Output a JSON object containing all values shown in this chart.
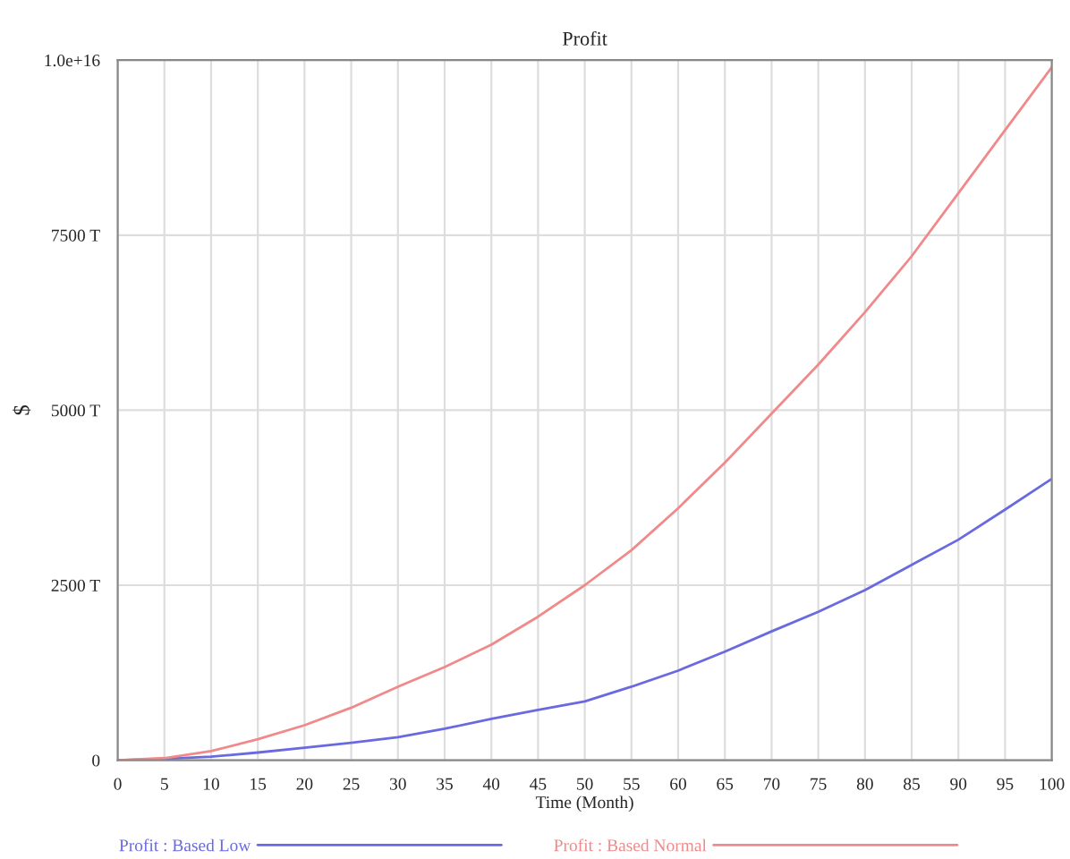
{
  "chart_data": {
    "type": "line",
    "title": "Profit",
    "xlabel": "Time (Month)",
    "ylabel": "$",
    "x": [
      0,
      5,
      10,
      15,
      20,
      25,
      30,
      35,
      40,
      45,
      50,
      55,
      60,
      65,
      70,
      75,
      80,
      85,
      90,
      95,
      100
    ],
    "series": [
      {
        "name": "Profit : Based Low",
        "color": "#6a6ae0",
        "values": [
          0,
          20000000000000.0,
          50000000000000.0,
          110000000000000.0,
          180000000000000.0,
          250000000000000.0,
          330000000000000.0,
          450000000000000.0,
          590000000000000.0,
          720000000000000.0,
          840000000000000.0,
          1050000000000000.0,
          1280000000000000.0,
          1550000000000000.0,
          1840000000000000.0,
          2120000000000000.0,
          2430000000000000.0,
          2790000000000000.0,
          3150000000000000.0,
          3580000000000000.0,
          4020000000000000.0
        ]
      },
      {
        "name": "Profit : Based Normal",
        "color": "#f08a8a",
        "values": [
          0,
          30000000000000.0,
          130000000000000.0,
          300000000000000.0,
          500000000000000.0,
          750000000000000.0,
          1050000000000000.0,
          1330000000000000.0,
          1650000000000000.0,
          2050000000000000.0,
          2500000000000000.0,
          3000000000000000.0,
          3600000000000000.0,
          4250000000000000.0,
          4950000000000000.0,
          5650000000000000.0,
          6400000000000000.0,
          7200000000000000.0,
          8100000000000000.0,
          9000000000000000.0,
          9900000000000000.0
        ]
      }
    ],
    "xlim": [
      0,
      100
    ],
    "xticks": [
      0,
      5,
      10,
      15,
      20,
      25,
      30,
      35,
      40,
      45,
      50,
      55,
      60,
      65,
      70,
      75,
      80,
      85,
      90,
      95,
      100
    ],
    "ylim": [
      0,
      1e+16
    ],
    "yticks": [
      0,
      {
        "value": 2500000000000000.0,
        "label": "2500 T"
      },
      {
        "value": 5000000000000000.0,
        "label": "5000 T"
      },
      {
        "value": 7500000000000000.0,
        "label": "7500 T"
      },
      {
        "value": 1e+16,
        "label": "1.0e+16"
      }
    ],
    "grid": true,
    "legend": "bottom",
    "marker": "none",
    "line_style": "solid"
  }
}
